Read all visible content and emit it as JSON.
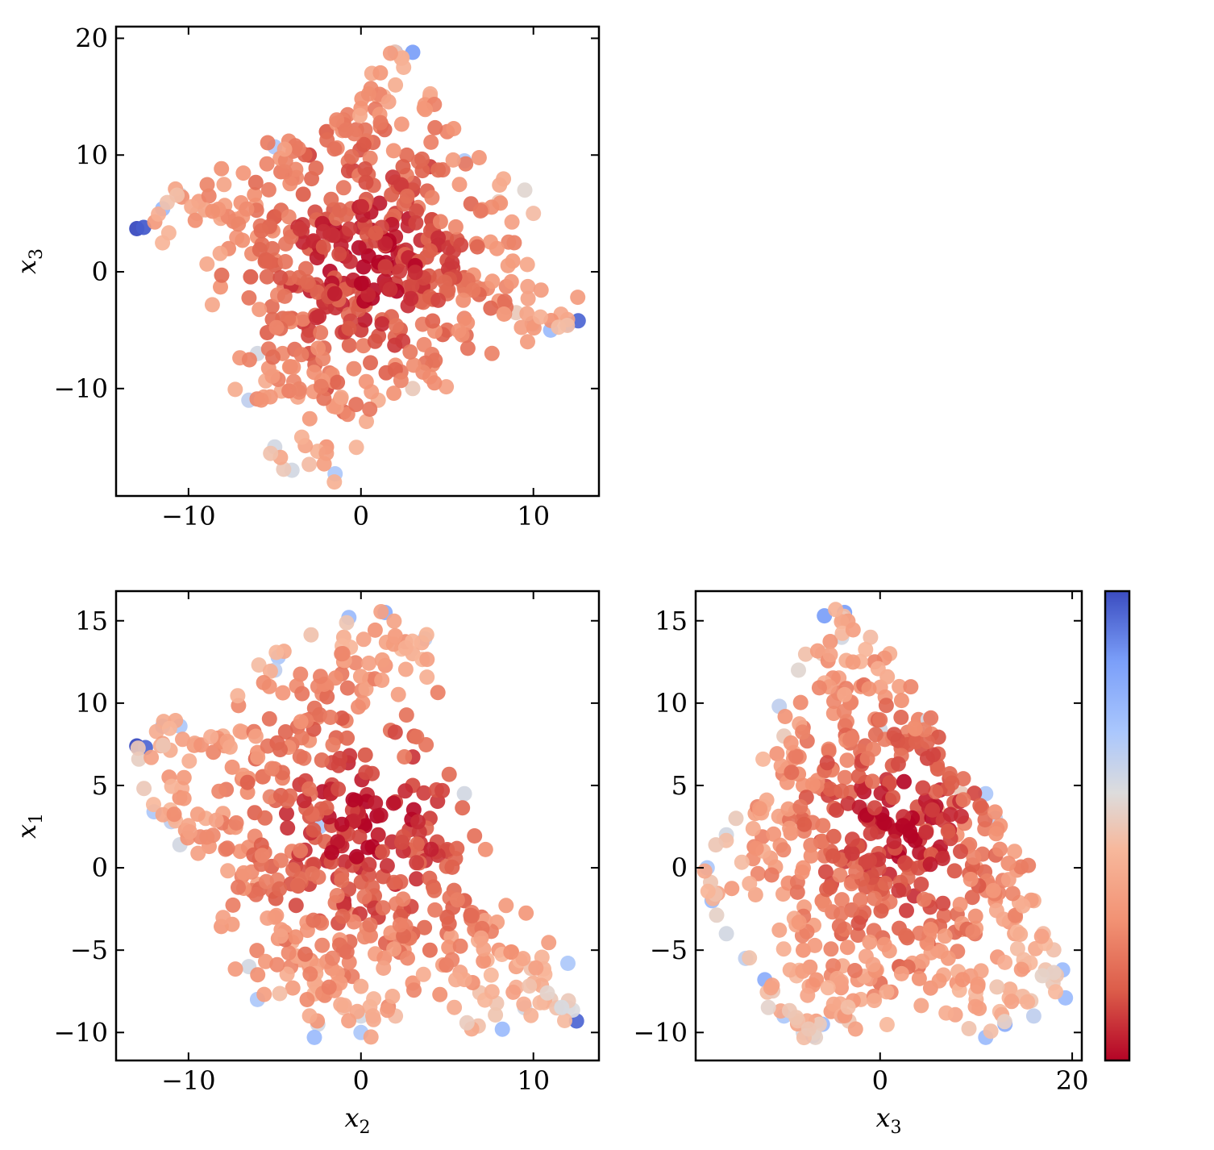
{
  "colormap": {
    "name": "coolwarm (reversed)",
    "stops": [
      "#b40426",
      "#dc5d4a",
      "#f29274",
      "#f7b89c",
      "#dddcdc",
      "#aac7fd",
      "#7b9ff9",
      "#3b4cc0"
    ]
  },
  "chart_data": [
    {
      "id": "x2_vs_x3",
      "type": "scatter",
      "xlabel": "",
      "ylabel": "x3",
      "ylabel_main": "x",
      "ylabel_sub": "3",
      "xlim": [
        -14.2,
        13.8
      ],
      "ylim": [
        -19.2,
        21.0
      ],
      "xticks": [
        -10,
        0,
        10
      ],
      "yticks": [
        -10,
        0,
        10,
        20
      ],
      "xtick_labels": [
        "−10",
        "0",
        "10"
      ],
      "ytick_labels": [
        "−10",
        "0",
        "10",
        "20"
      ],
      "points": [
        [
          -13,
          3.7
        ],
        [
          -12.6,
          3.8
        ],
        [
          -11.5,
          5.4
        ],
        [
          -10.5,
          6.6
        ],
        [
          -9.5,
          5.0
        ],
        [
          -8.3,
          5.2
        ],
        [
          -7.2,
          4.5
        ],
        [
          -6,
          3.0
        ],
        [
          -5,
          1.0
        ],
        [
          -4,
          -1.0
        ],
        [
          -3,
          2.0
        ],
        [
          -2,
          4.5
        ],
        [
          -1,
          3.3
        ],
        [
          0,
          2.0
        ],
        [
          1,
          0.5
        ],
        [
          2,
          -1.0
        ],
        [
          3,
          1.0
        ],
        [
          4,
          2.5
        ],
        [
          5,
          1.0
        ],
        [
          6,
          -0.5
        ],
        [
          7,
          -1.5
        ],
        [
          8,
          -2.5
        ],
        [
          9,
          -3.5
        ],
        [
          10,
          -4.5
        ],
        [
          11,
          -5.0
        ],
        [
          12,
          -4.5
        ],
        [
          12.6,
          -4.2
        ],
        [
          -4,
          -4
        ],
        [
          -3,
          -7
        ],
        [
          -2,
          -10
        ],
        [
          -1,
          -12
        ],
        [
          -2,
          -15
        ],
        [
          -3,
          -16.5
        ],
        [
          -4,
          -17
        ],
        [
          -1.5,
          -17.3
        ],
        [
          1,
          -11
        ],
        [
          2,
          -8
        ],
        [
          3,
          -10
        ],
        [
          4,
          -9
        ],
        [
          5,
          -5
        ],
        [
          -4,
          8
        ],
        [
          -3,
          10
        ],
        [
          -2,
          12
        ],
        [
          -1,
          13
        ],
        [
          0,
          14
        ],
        [
          1,
          15
        ],
        [
          2,
          16
        ],
        [
          2,
          18.8
        ],
        [
          3,
          18.8
        ],
        [
          4,
          15
        ],
        [
          5,
          12
        ],
        [
          4,
          9
        ],
        [
          3,
          7
        ],
        [
          2,
          5
        ],
        [
          -5,
          10.7
        ],
        [
          6,
          9.5
        ],
        [
          8,
          6
        ],
        [
          9.5,
          7
        ],
        [
          10,
          5
        ],
        [
          -6,
          -7
        ],
        [
          -5,
          -9
        ],
        [
          -6.5,
          -11
        ],
        [
          -5,
          -15
        ],
        [
          0,
          -5
        ],
        [
          -2,
          -3
        ],
        [
          -1,
          -1
        ],
        [
          2,
          3
        ],
        [
          3,
          -2
        ],
        [
          -3,
          -5
        ]
      ],
      "color_values": [
        1.0,
        0.97,
        0.75,
        0.6,
        0.5,
        0.4,
        0.35,
        0.3,
        0.25,
        0.2,
        0.15,
        0.12,
        0.1,
        0.65,
        0.05,
        0.1,
        0.08,
        0.1,
        0.12,
        0.15,
        0.2,
        0.3,
        0.5,
        0.65,
        0.75,
        0.85,
        0.95,
        0.15,
        0.12,
        0.12,
        0.18,
        0.3,
        0.45,
        0.6,
        0.7,
        0.4,
        0.3,
        0.5,
        0.3,
        0.2,
        0.1,
        0.1,
        0.15,
        0.2,
        0.3,
        0.35,
        0.4,
        0.8,
        0.85,
        0.35,
        0.25,
        0.1,
        0.1,
        0.1,
        0.7,
        0.7,
        0.5,
        0.55,
        0.45,
        0.6,
        0.4,
        0.65,
        0.6,
        0.1,
        0.08,
        0.05,
        0.05,
        0.05,
        0.1
      ]
    },
    {
      "id": "x2_vs_x1",
      "type": "scatter",
      "xlabel": "x2",
      "ylabel": "x1",
      "xlabel_main": "x",
      "xlabel_sub": "2",
      "ylabel_main": "x",
      "ylabel_sub": "1",
      "xlim": [
        -14.2,
        13.8
      ],
      "ylim": [
        -11.7,
        16.8
      ],
      "xticks": [
        -10,
        0,
        10
      ],
      "yticks": [
        -10,
        -5,
        0,
        5,
        10,
        15
      ],
      "xtick_labels": [
        "−10",
        "0",
        "10"
      ],
      "ytick_labels": [
        "−10",
        "−5",
        "0",
        "5",
        "10",
        "15"
      ],
      "points": [
        [
          -13,
          7.4
        ],
        [
          -12.5,
          7.3
        ],
        [
          -11.5,
          8.6
        ],
        [
          -10.5,
          8.6
        ],
        [
          -9.5,
          7.5
        ],
        [
          -8,
          8
        ],
        [
          -7,
          8.3
        ],
        [
          -6,
          7
        ],
        [
          -5,
          6
        ],
        [
          -4,
          7.5
        ],
        [
          -3,
          9
        ],
        [
          -2,
          11
        ],
        [
          -1,
          12.5
        ],
        [
          -1,
          14
        ],
        [
          -0.7,
          15.2
        ],
        [
          1.4,
          15.5
        ],
        [
          2,
          14
        ],
        [
          3,
          13
        ],
        [
          3.7,
          13.9
        ],
        [
          -12,
          3.4
        ],
        [
          -11,
          2.8
        ],
        [
          -10.5,
          1.4
        ],
        [
          -9,
          3
        ],
        [
          -8,
          3.3
        ],
        [
          -7,
          1
        ],
        [
          -6,
          -1
        ],
        [
          -5,
          -3
        ],
        [
          -4,
          -4.5
        ],
        [
          -3,
          -6
        ],
        [
          -2,
          -7.5
        ],
        [
          -1,
          -8.5
        ],
        [
          0,
          -9
        ],
        [
          -2.5,
          -9.5
        ],
        [
          -2.7,
          -10.3
        ],
        [
          0,
          -10
        ],
        [
          2,
          -9
        ],
        [
          3,
          -7
        ],
        [
          4,
          -5
        ],
        [
          5,
          -3
        ],
        [
          6,
          -2
        ],
        [
          7,
          -3
        ],
        [
          8,
          -5
        ],
        [
          9,
          -6
        ],
        [
          10,
          -7
        ],
        [
          11,
          -8
        ],
        [
          12,
          -8.5
        ],
        [
          12.5,
          -9.3
        ],
        [
          8.2,
          -9.8
        ],
        [
          9.5,
          -8.5
        ],
        [
          12,
          -5.8
        ],
        [
          -6.5,
          -6
        ],
        [
          -6,
          -8
        ],
        [
          -4.8,
          12.8
        ],
        [
          -5,
          12
        ],
        [
          -2,
          3.3
        ],
        [
          -2.4,
          2.5
        ],
        [
          0,
          3
        ],
        [
          0,
          0
        ],
        [
          1,
          2
        ],
        [
          2,
          4
        ],
        [
          3,
          5
        ],
        [
          4,
          3
        ],
        [
          5,
          1
        ],
        [
          6,
          4.5
        ],
        [
          -3,
          -1
        ],
        [
          -1,
          -2
        ],
        [
          1,
          -3
        ],
        [
          2,
          -1
        ],
        [
          -4,
          1
        ],
        [
          -5.2,
          4.3
        ],
        [
          -1,
          -5
        ],
        [
          3,
          -4
        ]
      ],
      "color_values": [
        1.0,
        0.95,
        0.75,
        0.7,
        0.55,
        0.4,
        0.35,
        0.3,
        0.25,
        0.2,
        0.2,
        0.25,
        0.3,
        0.4,
        0.75,
        0.8,
        0.45,
        0.4,
        0.65,
        0.7,
        0.65,
        0.6,
        0.4,
        0.35,
        0.3,
        0.35,
        0.3,
        0.4,
        0.45,
        0.4,
        0.45,
        0.6,
        0.6,
        0.75,
        0.7,
        0.45,
        0.3,
        0.2,
        0.15,
        0.15,
        0.2,
        0.3,
        0.35,
        0.4,
        0.5,
        0.6,
        0.95,
        0.75,
        0.6,
        0.7,
        0.6,
        0.7,
        0.7,
        0.65,
        0.55,
        0.7,
        0.0,
        0.05,
        0.05,
        0.1,
        0.12,
        0.1,
        0.1,
        0.6,
        0.1,
        0.05,
        0.1,
        0.05,
        0.25,
        0.7,
        0.2,
        0.15
      ]
    },
    {
      "id": "x3_vs_x1",
      "type": "scatter",
      "xlabel": "x3",
      "ylabel": "",
      "xlabel_main": "x",
      "xlabel_sub": "3",
      "xlim": [
        -19.2,
        21.0
      ],
      "ylim": [
        -11.7,
        16.8
      ],
      "xticks": [
        0,
        20
      ],
      "yticks": [
        -10,
        -5,
        0,
        5,
        10,
        15
      ],
      "xtick_labels": [
        "0",
        "20"
      ],
      "ytick_labels": [
        "−10",
        "−5",
        "0",
        "5",
        "10",
        "15"
      ],
      "points": [
        [
          -5.8,
          15.3
        ],
        [
          -3.7,
          15.5
        ],
        [
          -4,
          14
        ],
        [
          -6,
          13
        ],
        [
          -8.5,
          12
        ],
        [
          -10.5,
          9.8
        ],
        [
          -10,
          8
        ],
        [
          -9,
          7
        ],
        [
          -8,
          5
        ],
        [
          -13,
          3.3
        ],
        [
          -15,
          3
        ],
        [
          -16,
          2
        ],
        [
          -18,
          0
        ],
        [
          -17.5,
          -2
        ],
        [
          -16,
          -4
        ],
        [
          -14,
          -5.5
        ],
        [
          -12,
          -6.8
        ],
        [
          -10,
          -9
        ],
        [
          -8,
          -10
        ],
        [
          -6,
          -9.5
        ],
        [
          -4,
          -9
        ],
        [
          -2,
          -8
        ],
        [
          0,
          -7
        ],
        [
          2,
          -6
        ],
        [
          4,
          -6
        ],
        [
          6,
          -5
        ],
        [
          8,
          -7
        ],
        [
          10,
          -8
        ],
        [
          11,
          -10.3
        ],
        [
          13,
          -9.5
        ],
        [
          16,
          -9
        ],
        [
          18,
          -7
        ],
        [
          19,
          -6.2
        ],
        [
          19.3,
          -7.9
        ],
        [
          15,
          -6
        ],
        [
          14,
          -4
        ],
        [
          12,
          -2
        ],
        [
          10,
          0
        ],
        [
          8,
          2
        ],
        [
          6,
          3.5
        ],
        [
          8.5,
          4.5
        ],
        [
          11,
          4.5
        ],
        [
          12,
          3
        ],
        [
          14,
          1
        ],
        [
          16,
          -2
        ],
        [
          17,
          -4
        ],
        [
          -10,
          3
        ],
        [
          -8,
          0
        ],
        [
          -6,
          -2
        ],
        [
          -4,
          -4
        ],
        [
          -2,
          -3
        ],
        [
          0,
          -1
        ],
        [
          2,
          1
        ],
        [
          4,
          3
        ],
        [
          6,
          6
        ],
        [
          4,
          9
        ],
        [
          2,
          11
        ],
        [
          1,
          13
        ],
        [
          -1,
          14
        ],
        [
          -2,
          11
        ],
        [
          -3,
          8
        ],
        [
          -5,
          6
        ],
        [
          -1,
          3
        ],
        [
          1,
          1
        ],
        [
          3,
          0
        ],
        [
          0,
          8.4
        ],
        [
          -1.5,
          3.5
        ],
        [
          4,
          8.2
        ],
        [
          5,
          9
        ],
        [
          -7,
          -10.2
        ],
        [
          -8,
          -5
        ],
        [
          5,
          -2
        ],
        [
          -3,
          1
        ]
      ],
      "color_values": [
        0.85,
        0.85,
        0.6,
        0.5,
        0.55,
        0.65,
        0.5,
        0.4,
        0.3,
        0.35,
        0.5,
        0.6,
        0.7,
        0.75,
        0.6,
        0.65,
        0.8,
        0.7,
        0.6,
        0.75,
        0.85,
        0.4,
        0.2,
        0.15,
        0.2,
        0.25,
        0.3,
        0.4,
        0.75,
        0.8,
        0.65,
        0.5,
        0.75,
        0.75,
        0.3,
        0.35,
        0.3,
        0.35,
        0.3,
        0.4,
        0.5,
        0.7,
        0.65,
        0.35,
        0.4,
        0.45,
        0.4,
        0.3,
        0.25,
        0.15,
        0.1,
        0.05,
        0.05,
        0.1,
        0.15,
        0.25,
        0.35,
        0.4,
        0.45,
        0.3,
        0.2,
        0.15,
        0.02,
        0.05,
        0.1,
        0.6,
        0.55,
        0.65,
        0.6,
        0.8,
        0.3,
        0.2,
        0.08
      ]
    }
  ]
}
